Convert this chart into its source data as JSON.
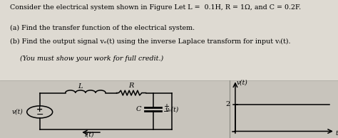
{
  "background_color": "#c8c4bc",
  "text_bg": "#e8e4dc",
  "title_text": "Consider the electrical system shown in Figure Let L =  0.1H, R = 1Ω, and C = 0.2F.",
  "part_a": "(a) Find the transfer function of the electrical system.",
  "part_b": "(b) Find the output signal vₑ(t) using the inverse Laplace transform for input vᵢ(t).",
  "part_c": "(You must show your work for full credit.)",
  "step_value": 2,
  "fig_width": 4.74,
  "fig_height": 1.94,
  "dpi": 100
}
